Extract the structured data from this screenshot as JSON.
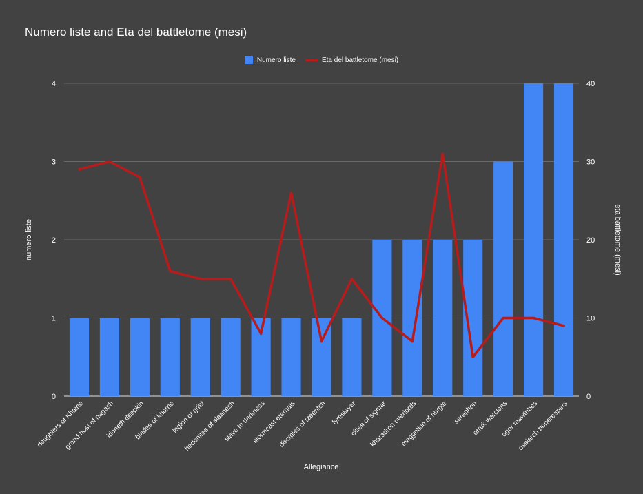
{
  "chart_data": {
    "type": "bar",
    "title": "Numero liste and Eta del battletome (mesi)",
    "xlabel": "Allegiance",
    "ylabel_left": "numero liste",
    "ylabel_right": "eta  battletome (mesi)",
    "legend_position": "top",
    "grid": true,
    "categories": [
      "daughters of Khaine",
      "grand host of nagash",
      "idoneth deepkin",
      "blades of khorne",
      "legion of grief",
      "hedonites of slaanesh",
      "slave to darkness",
      "stormcast eternals",
      "disciples of tzeentch",
      "fyreslayer",
      "cities of sigmar",
      "kharadron overlords",
      "maggotkin of nurgle",
      "seraphon",
      "orruk warclans",
      "ogor mawtribes",
      "ossiarch bonereapers"
    ],
    "series": [
      {
        "name": "Numero liste",
        "type": "bar",
        "axis": "left",
        "color": "#4285F4",
        "values": [
          1,
          1,
          1,
          1,
          1,
          1,
          1,
          1,
          1,
          1,
          2,
          2,
          2,
          2,
          3,
          4,
          4
        ]
      },
      {
        "name": "Eta del battletome (mesi)",
        "type": "line",
        "axis": "right",
        "color": "#B71C1C",
        "values": [
          29,
          30,
          28,
          16,
          15,
          15,
          8,
          26,
          7,
          15,
          10,
          7,
          31,
          5,
          10,
          10,
          9
        ]
      }
    ],
    "ylim_left": [
      0,
      4
    ],
    "ylim_right": [
      0,
      40
    ],
    "yticks_left": [
      "0",
      "1",
      "2",
      "3",
      "4"
    ],
    "yticks_right": [
      "0",
      "10",
      "20",
      "30",
      "40"
    ]
  }
}
